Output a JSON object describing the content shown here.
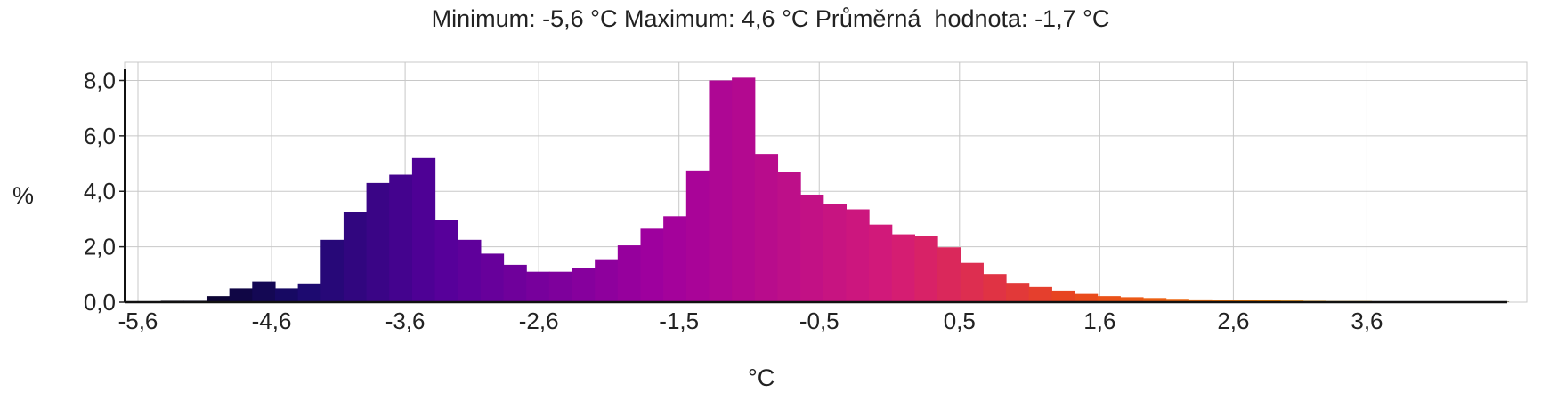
{
  "header": {
    "min_label": "Minimum:",
    "min_value": "-5,6",
    "max_label": "Maximum:",
    "max_value": "4,6",
    "avg_label": "Průměrná  hodnota:",
    "avg_value": "-1,7",
    "unit": "°C"
  },
  "chart_data": {
    "type": "bar",
    "xlabel": "°C",
    "ylabel": "%",
    "ylim": [
      0,
      8.4
    ],
    "yticks": [
      0,
      2,
      4,
      6,
      8
    ],
    "ytick_labels": [
      "0,0",
      "2,0",
      "4,0",
      "6,0",
      "8,0"
    ],
    "xlim": [
      -5.6,
      4.65
    ],
    "xticks": [
      -5.6,
      -4.6,
      -3.6,
      -2.6,
      -1.55,
      -0.5,
      0.55,
      1.6,
      2.6,
      3.6
    ],
    "xtick_labels": [
      "-5,6",
      "-4,6",
      "-3,6",
      "-2,6",
      "-1,5",
      "-0,5",
      "0,5",
      "1,6",
      "2,6",
      "3,6"
    ],
    "bin_start": -5.6,
    "bin_width": 0.171,
    "values": [
      0.02,
      0.05,
      0.05,
      0.22,
      0.5,
      0.75,
      0.5,
      0.68,
      2.25,
      3.25,
      4.3,
      4.6,
      5.2,
      2.95,
      2.25,
      1.75,
      1.35,
      1.1,
      1.1,
      1.25,
      1.55,
      2.05,
      2.65,
      3.1,
      4.75,
      8.0,
      8.1,
      5.35,
      4.7,
      3.88,
      3.55,
      3.35,
      2.8,
      2.45,
      2.38,
      1.98,
      1.42,
      1.02,
      0.7,
      0.55,
      0.42,
      0.3,
      0.22,
      0.18,
      0.15,
      0.12,
      0.1,
      0.09,
      0.08,
      0.07,
      0.06,
      0.05,
      0.04,
      0.04,
      0.03,
      0.03,
      0.03,
      0.03,
      0.03,
      0.02
    ],
    "grid": true,
    "gradient_colors": [
      "#000000",
      "#1a0a6e",
      "#55009a",
      "#a0009e",
      "#d41a78",
      "#e8461e",
      "#f07808",
      "#f5a81a",
      "#f8d040",
      "#fce870",
      "#000000"
    ],
    "gradient_stops": [
      0.0,
      0.12,
      0.22,
      0.38,
      0.55,
      0.68,
      0.8,
      0.87,
      0.93,
      0.97,
      1.0
    ]
  }
}
